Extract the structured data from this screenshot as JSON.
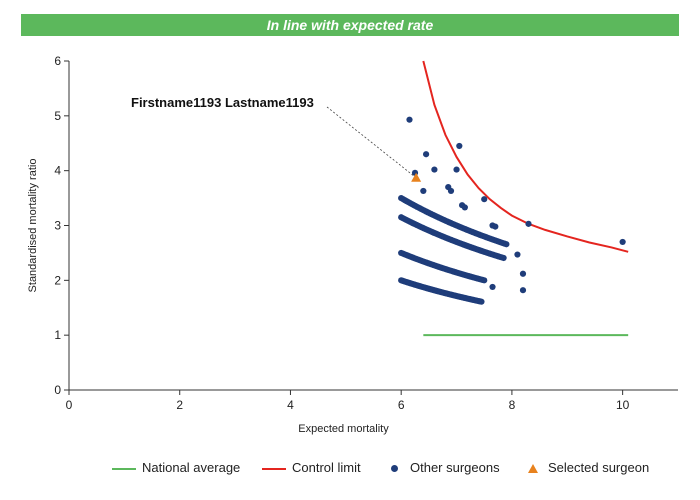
{
  "banner": {
    "text": "In line with expected rate",
    "color": "#5cb85c"
  },
  "chart_data": {
    "type": "scatter",
    "xlabel": "Expected mortality",
    "ylabel": "Standardised mortality ratio",
    "xlim": [
      0,
      11
    ],
    "ylim": [
      0,
      6
    ],
    "xticks": [
      "0",
      "2",
      "4",
      "6",
      "8",
      "10"
    ],
    "yticks": [
      "0",
      "1",
      "2",
      "3",
      "4",
      "5",
      "6"
    ],
    "grid": false,
    "legend_position": "bottom",
    "annotation": {
      "text": "Firstname1193 Lastname1193",
      "target": [
        6.27,
        3.87
      ]
    },
    "series": [
      {
        "name": "National average",
        "kind": "line",
        "color": "#5cb85c",
        "x": [
          6.4,
          10.1
        ],
        "y": [
          1.0,
          1.0
        ]
      },
      {
        "name": "Control limit",
        "kind": "line",
        "color": "#e4251f",
        "x": [
          6.4,
          6.6,
          6.8,
          7.0,
          7.2,
          7.4,
          7.6,
          7.8,
          8.0,
          8.3,
          8.6,
          9.0,
          9.4,
          9.8,
          10.1
        ],
        "y": [
          6.0,
          5.2,
          4.65,
          4.25,
          3.93,
          3.68,
          3.48,
          3.32,
          3.18,
          3.03,
          2.92,
          2.8,
          2.69,
          2.6,
          2.52
        ]
      },
      {
        "name": "Other surgeons",
        "kind": "scatter",
        "color": "#1f3d7a",
        "x": [
          6.15,
          6.25,
          6.45,
          6.6,
          7.05,
          7.0,
          6.85,
          6.9,
          6.4,
          7.1,
          7.15,
          7.5,
          7.65,
          7.7,
          8.3,
          10.0,
          8.1,
          8.2,
          8.2,
          7.65
        ],
        "y": [
          4.93,
          3.96,
          4.3,
          4.02,
          4.45,
          4.02,
          3.7,
          3.63,
          3.63,
          3.37,
          3.33,
          3.48,
          3.0,
          2.98,
          3.03,
          2.7,
          2.47,
          2.12,
          1.82,
          1.88
        ]
      },
      {
        "name": "Selected surgeon",
        "kind": "marker",
        "color": "#e8821e",
        "x": [
          6.27
        ],
        "y": [
          3.87
        ]
      }
    ],
    "bands": [
      {
        "series": "Other surgeons",
        "k": 18.9,
        "x_from": 6.0,
        "x_to": 7.85,
        "count": 60
      },
      {
        "series": "Other surgeons",
        "k": 21.0,
        "x_from": 6.0,
        "x_to": 7.9,
        "count": 60
      },
      {
        "series": "Other surgeons",
        "k": 15.0,
        "x_from": 6.0,
        "x_to": 7.5,
        "count": 50
      },
      {
        "series": "Other surgeons",
        "k": 12.0,
        "x_from": 6.0,
        "x_to": 7.45,
        "count": 60
      }
    ]
  },
  "legend": [
    {
      "label": "National average",
      "kind": "line",
      "color": "#5cb85c"
    },
    {
      "label": "Control limit",
      "kind": "line",
      "color": "#e4251f"
    },
    {
      "label": "Other surgeons",
      "kind": "dot",
      "color": "#1f3d7a"
    },
    {
      "label": "Selected surgeon",
      "kind": "triangle",
      "color": "#e8821e"
    }
  ]
}
